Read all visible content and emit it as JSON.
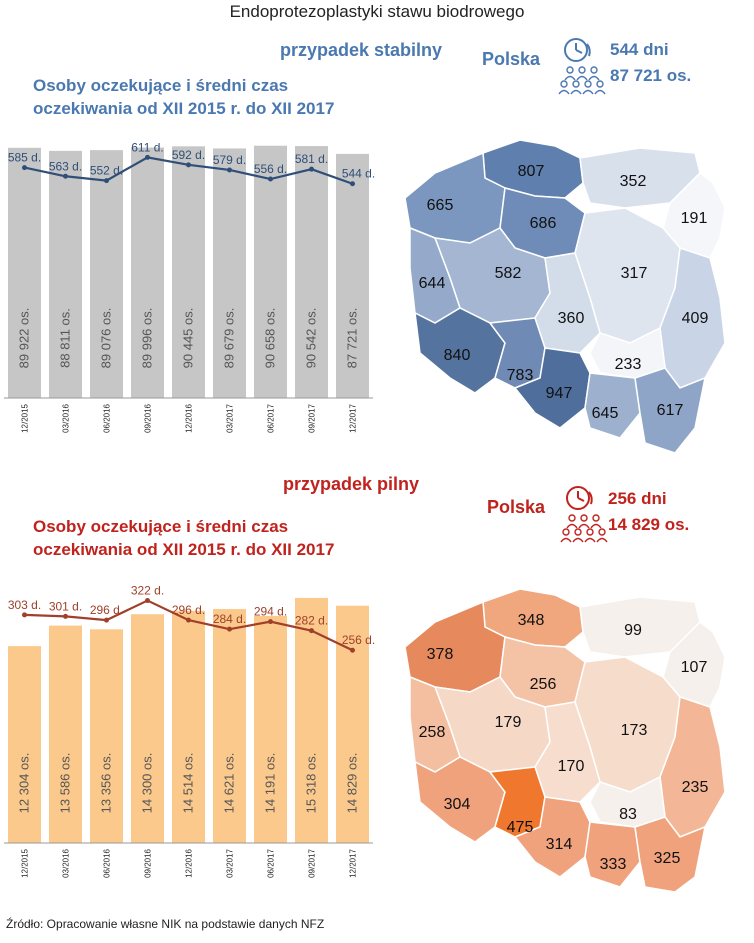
{
  "title": "Endoprotezoplastyki  stawu biodrowego",
  "colors": {
    "stable_accent": "#4a78b0",
    "urgent_accent": "#c0231e",
    "stable_bar": "#c6c6c6",
    "stable_line": "#2f4f78",
    "urgent_bar": "#fbc98b",
    "urgent_line": "#a0402a"
  },
  "stable": {
    "case_label": "przypadek stabilny",
    "subtitle_line1": "Osoby oczekujące i średni czas",
    "subtitle_line2": "oczekiwania od XII 2015 r. do XII 2017",
    "country": "Polska",
    "days": "544 dni",
    "persons": "87 721 os.",
    "icons": [
      "clock-icon",
      "people-group-icon"
    ],
    "map_values": [
      "807",
      "352",
      "665",
      "686",
      "191",
      "582",
      "644",
      "317",
      "360",
      "409",
      "840",
      "233",
      "783",
      "947",
      "645",
      "617"
    ]
  },
  "urgent": {
    "case_label": "przypadek pilny",
    "subtitle_line1": "Osoby oczekujące i średni czas",
    "subtitle_line2": "oczekiwania od XII 2015 r. do XII 2017",
    "country": "Polska",
    "days": "256 dni",
    "persons": "14 829 os.",
    "icons": [
      "clock-icon",
      "people-group-icon"
    ],
    "map_values": [
      "348",
      "99",
      "378",
      "256",
      "107",
      "179",
      "258",
      "173",
      "170",
      "235",
      "304",
      "83",
      "475",
      "314",
      "333",
      "325"
    ]
  },
  "chart_data": [
    {
      "type": "bar",
      "categories": [
        "12/2015",
        "03/2016",
        "06/2016",
        "09/2016",
        "12/2016",
        "03/2017",
        "06/2017",
        "09/2017",
        "12/2017"
      ],
      "series": [
        {
          "type": "bar",
          "values": [
            89922,
            88811,
            89076,
            89996,
            90445,
            89679,
            90658,
            90542,
            87721
          ],
          "labels": [
            "89 922 os.",
            "88 811 os.",
            "89 076 os.",
            "89 996 os.",
            "90 445 os.",
            "89 679 os.",
            "90 658 os.",
            "90 542 os.",
            "87 721 os."
          ]
        },
        {
          "type": "line",
          "values": [
            585,
            563,
            552,
            611,
            592,
            579,
            556,
            581,
            544
          ],
          "labels": [
            "585 d.",
            "563 d.",
            "552 d.",
            "611 d.",
            "592 d.",
            "579 d.",
            "556 d.",
            "581 d.",
            "544 d."
          ]
        }
      ],
      "title": "Osoby oczekujące i średni czas oczekiwania od XII 2015 r. do XII 2017",
      "bar_ylim": [
        0,
        92000
      ],
      "line_ylim": [
        0,
        650
      ]
    },
    {
      "type": "bar",
      "categories": [
        "12/2015",
        "03/2016",
        "06/2016",
        "09/2016",
        "12/2016",
        "03/2017",
        "06/2017",
        "09/2017",
        "12/2017"
      ],
      "series": [
        {
          "type": "bar",
          "values": [
            12304,
            13586,
            13356,
            14300,
            14514,
            14621,
            14191,
            15318,
            14829
          ],
          "labels": [
            "12 304 os.",
            "13 586 os.",
            "13 356 os.",
            "14 300 os.",
            "14 514 os.",
            "14 621 os.",
            "14 191 os.",
            "15 318 os.",
            "14 829 os."
          ]
        },
        {
          "type": "line",
          "values": [
            303,
            301,
            296,
            322,
            296,
            284,
            294,
            282,
            256
          ],
          "labels": [
            "303 d.",
            "301 d.",
            "296 d.",
            "322 d.",
            "296 d.",
            "284 d.",
            "294 d.",
            "282 d.",
            "256 d."
          ]
        }
      ],
      "title": "Osoby oczekujące i średni czas oczekiwania od XII 2015 r. do XII 2017",
      "bar_ylim": [
        0,
        16000
      ],
      "line_ylim": [
        0,
        340
      ]
    }
  ],
  "source": "Źródło: Opracowanie  własne NIK na podstawie danych NFZ"
}
